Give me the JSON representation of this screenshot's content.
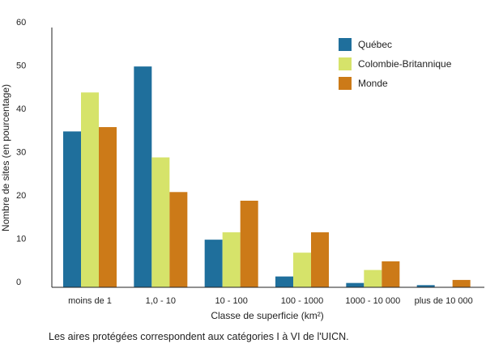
{
  "chart_data": {
    "type": "bar",
    "categories": [
      "moins de 1",
      "1,0 - 10",
      "10 - 100",
      "100 - 1000",
      "1000 - 10 000",
      "plus de 10 000"
    ],
    "series": [
      {
        "name": "Québec",
        "values": [
          36,
          51,
          11,
          2.5,
          1,
          0.5
        ]
      },
      {
        "name": "Colombie-Britannique",
        "values": [
          45,
          30,
          12.7,
          8,
          4,
          0
        ]
      },
      {
        "name": "Monde",
        "values": [
          37,
          22,
          20,
          12.7,
          6,
          1.7
        ]
      }
    ],
    "ylim": [
      0,
      60
    ],
    "yticks": [
      0,
      10,
      20,
      30,
      40,
      50,
      60
    ],
    "xlabel": "Classe de superficie (km²)",
    "ylabel": "Nombre de sites (en pourcentage)",
    "grid": false,
    "legend": "top-right",
    "colors": [
      "#1f6f9c",
      "#d6e36a",
      "#cc7a18"
    ]
  },
  "footnote": "Les aires protégées correspondent aux catégories I à VI de l'UICN."
}
